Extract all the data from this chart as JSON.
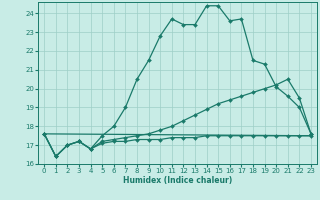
{
  "title": "",
  "xlabel": "Humidex (Indice chaleur)",
  "background_color": "#c8ece6",
  "grid_color": "#9ecfc7",
  "line_color": "#1a7a6a",
  "xlim": [
    -0.5,
    23.5
  ],
  "ylim": [
    16.0,
    24.6
  ],
  "yticks": [
    16,
    17,
    18,
    19,
    20,
    21,
    22,
    23,
    24
  ],
  "xticks": [
    0,
    1,
    2,
    3,
    4,
    5,
    6,
    7,
    8,
    9,
    10,
    11,
    12,
    13,
    14,
    15,
    16,
    17,
    18,
    19,
    20,
    21,
    22,
    23
  ],
  "line1_x": [
    0,
    1,
    2,
    3,
    4,
    5,
    6,
    7,
    8,
    9,
    10,
    11,
    12,
    13,
    14,
    15,
    16,
    17,
    18,
    19,
    20,
    21,
    22,
    23
  ],
  "line1_y": [
    17.6,
    16.4,
    17.0,
    17.2,
    16.8,
    17.5,
    18.0,
    19.0,
    20.5,
    21.5,
    22.8,
    23.7,
    23.4,
    23.4,
    24.4,
    24.4,
    23.6,
    23.7,
    21.5,
    21.3,
    20.1,
    19.6,
    19.0,
    17.6
  ],
  "line2_x": [
    0,
    1,
    2,
    3,
    4,
    5,
    6,
    7,
    8,
    9,
    10,
    11,
    12,
    13,
    14,
    15,
    16,
    17,
    18,
    19,
    20,
    21,
    22,
    23
  ],
  "line2_y": [
    17.6,
    16.4,
    17.0,
    17.2,
    16.8,
    17.2,
    17.3,
    17.4,
    17.5,
    17.6,
    17.8,
    18.0,
    18.3,
    18.6,
    18.9,
    19.2,
    19.4,
    19.6,
    19.8,
    20.0,
    20.2,
    20.5,
    19.5,
    17.6
  ],
  "line3_x": [
    0,
    1,
    2,
    3,
    4,
    5,
    6,
    7,
    8,
    9,
    10,
    11,
    12,
    13,
    14,
    15,
    16,
    17,
    18,
    19,
    20,
    21,
    22,
    23
  ],
  "line3_y": [
    17.6,
    16.4,
    17.0,
    17.2,
    16.8,
    17.1,
    17.2,
    17.2,
    17.3,
    17.3,
    17.3,
    17.4,
    17.4,
    17.4,
    17.5,
    17.5,
    17.5,
    17.5,
    17.5,
    17.5,
    17.5,
    17.5,
    17.5,
    17.5
  ],
  "line4_x": [
    0,
    23
  ],
  "line4_y": [
    17.6,
    17.5
  ]
}
